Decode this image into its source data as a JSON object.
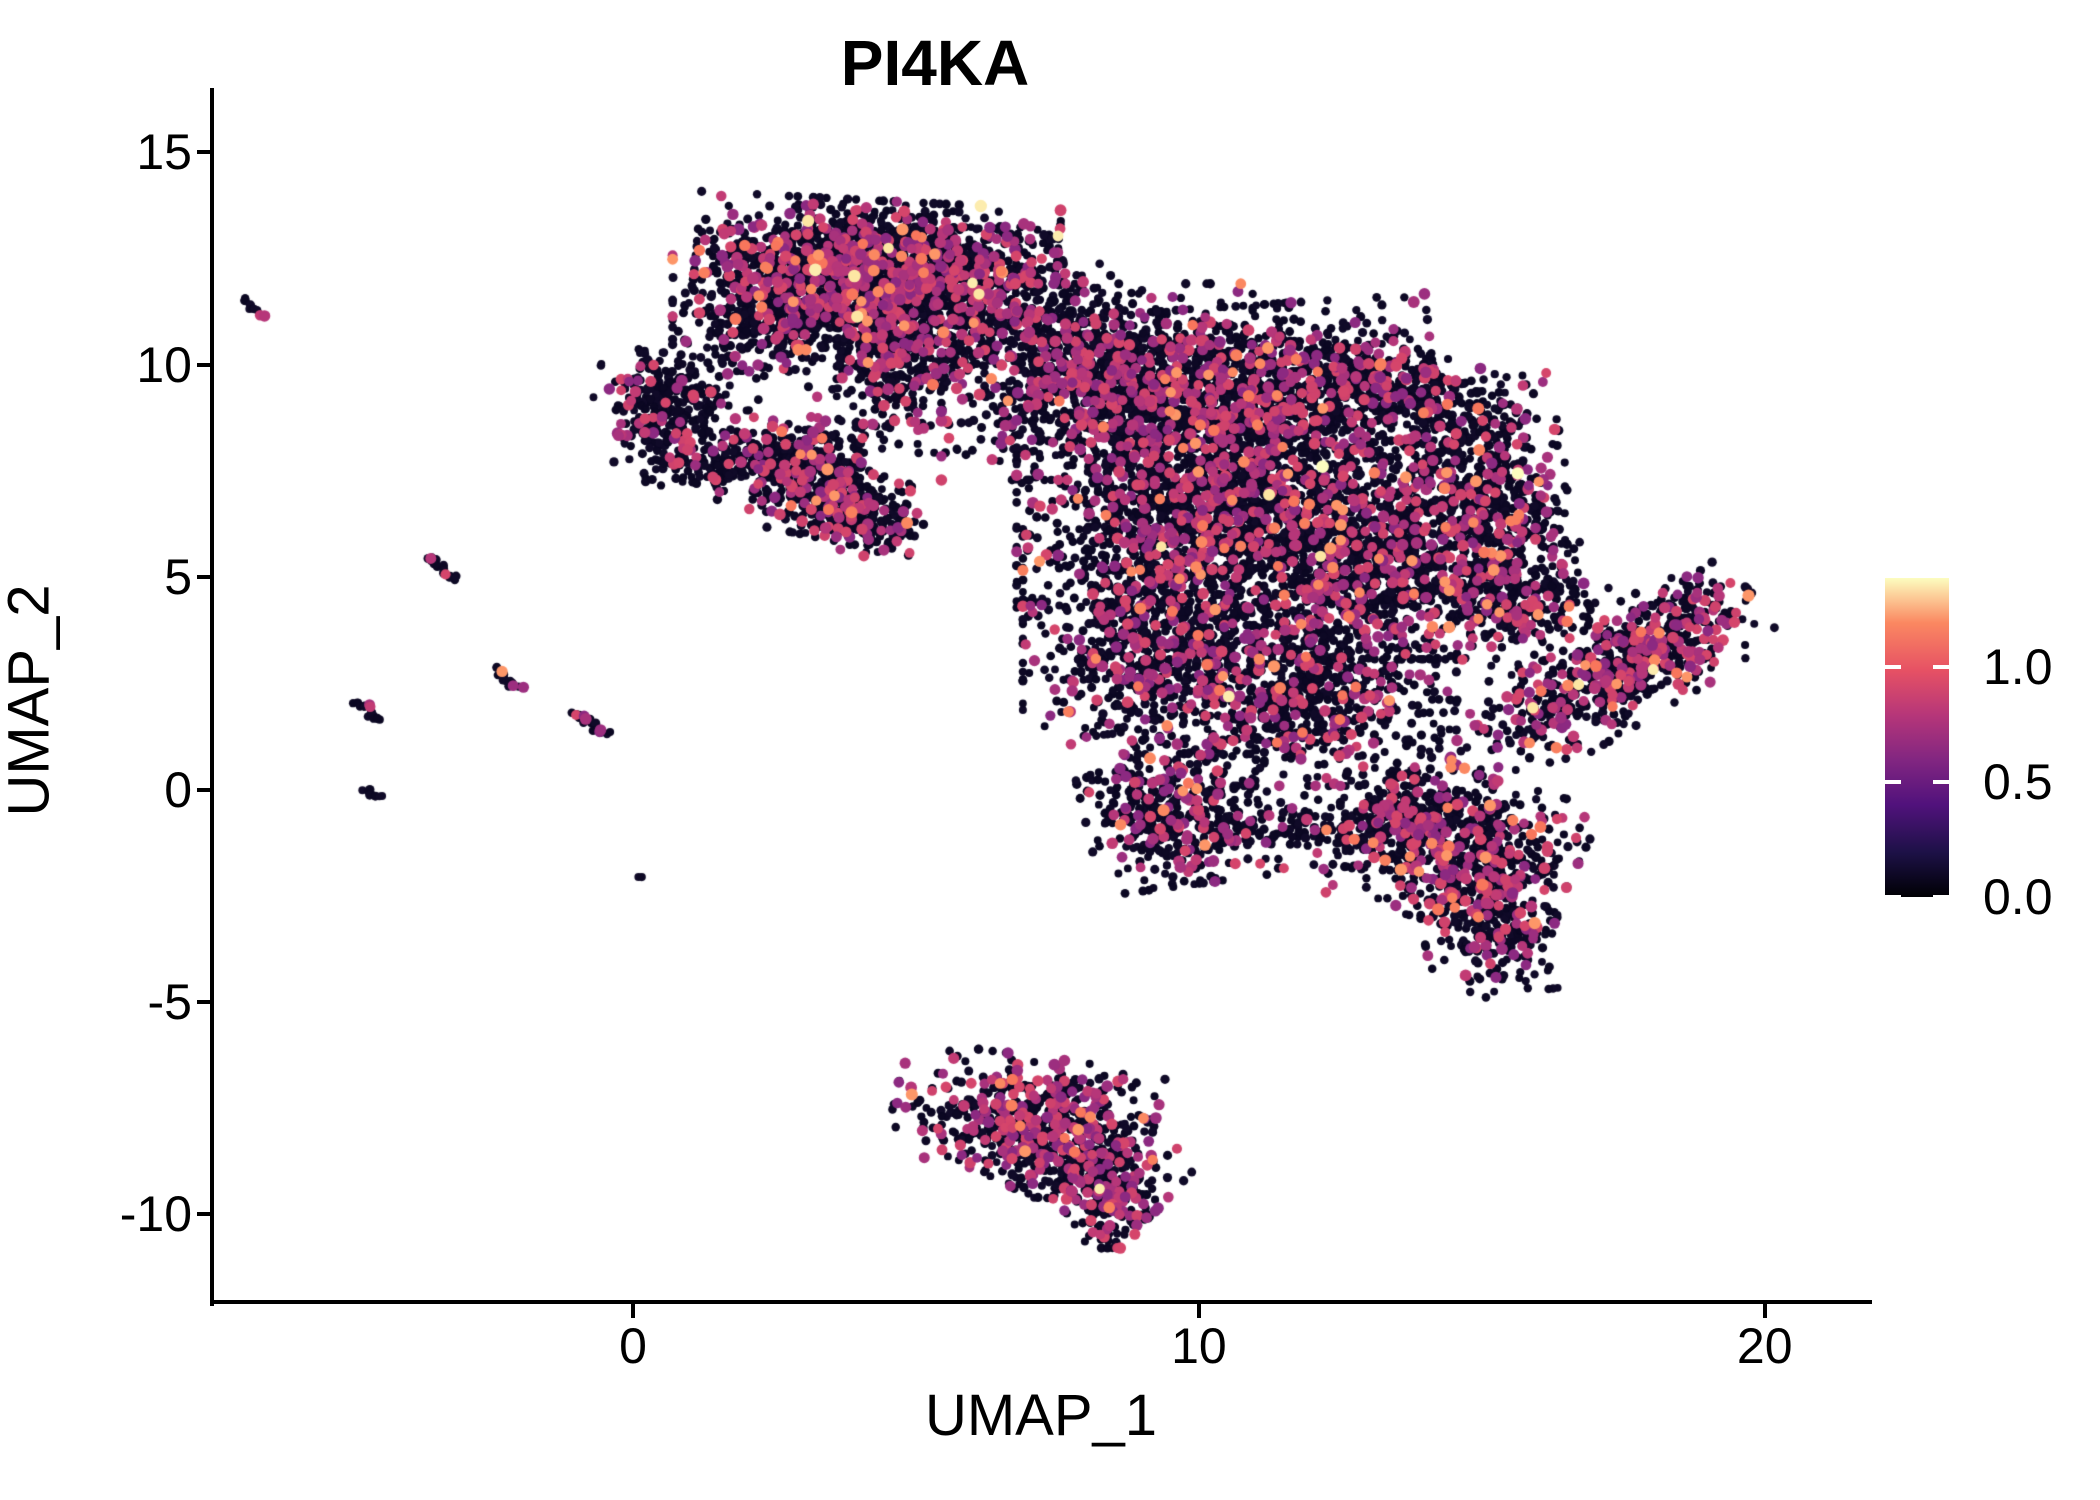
{
  "title": {
    "text": "PI4KA"
  },
  "axes": {
    "x": {
      "label": "UMAP_1",
      "range": [
        -7.44,
        21.86
      ],
      "ticks": [
        {
          "value": 0,
          "label": "0"
        },
        {
          "value": 10,
          "label": "10"
        },
        {
          "value": 20,
          "label": "20"
        }
      ]
    },
    "y": {
      "label": "UMAP_2",
      "range": [
        -12.06,
        16.47
      ],
      "ticks": [
        {
          "value": 15,
          "label": "15"
        },
        {
          "value": 10,
          "label": "10"
        },
        {
          "value": 5,
          "label": "5"
        },
        {
          "value": 0,
          "label": "0"
        },
        {
          "value": -5,
          "label": "-5"
        },
        {
          "value": -10,
          "label": "-10"
        }
      ]
    }
  },
  "legend": {
    "max_value": 1.387,
    "ticks": [
      {
        "value": 1.0,
        "label": "1.0"
      },
      {
        "value": 0.5,
        "label": "0.5"
      },
      {
        "value": 0.0,
        "label": "0.0"
      }
    ],
    "gradient": [
      {
        "t": 0.0,
        "color": "#000004"
      },
      {
        "t": 0.14,
        "color": "#1d1147"
      },
      {
        "t": 0.29,
        "color": "#51127c"
      },
      {
        "t": 0.43,
        "color": "#822681"
      },
      {
        "t": 0.57,
        "color": "#b63679"
      },
      {
        "t": 0.71,
        "color": "#e65164"
      },
      {
        "t": 0.86,
        "color": "#fb8861"
      },
      {
        "t": 1.0,
        "color": "#fcfdbf"
      }
    ]
  },
  "chart_data": {
    "type": "scatter",
    "title": "PI4KA",
    "xlabel": "UMAP_1",
    "ylabel": "UMAP_2",
    "xlim": [
      -7.44,
      21.86
    ],
    "ylim": [
      -12.06,
      16.47
    ],
    "grid": false,
    "legend_position": "right",
    "colorbar": {
      "colormap": "magma",
      "domain": [
        0.0,
        1.387
      ],
      "tick_values": [
        0.0,
        0.5,
        1.0
      ]
    },
    "palette": {
      "zero": [
        "#0b0722",
        "#0d0824",
        "#100a28"
      ],
      "mid": [
        "#8c2981",
        "#9c2e7f",
        "#a8327c",
        "#b63679",
        "#c23b74",
        "#cf426c",
        "#d5456b"
      ],
      "high": [
        "#f8765c",
        "#fb8861",
        "#fd9668",
        "#f97f5e"
      ],
      "top": [
        "#fcecae",
        "#fcfdbf",
        "#fde6a3"
      ]
    },
    "point_radius": {
      "zero": 4.3,
      "mid": 5.4,
      "high": 5.6,
      "top": 5.8
    },
    "clusters": [
      {
        "name": "top-center-a1",
        "shape": "blob",
        "cx": 4.3,
        "cy": 12.5,
        "sx": 1.45,
        "sy": 0.62,
        "rot": -4,
        "n": 1050,
        "mix": {
          "zero": 0.76,
          "mid": 0.22,
          "high": 0.018,
          "top": 0.002
        }
      },
      {
        "name": "top-center-a2",
        "shape": "blob",
        "cx": 2.9,
        "cy": 11.5,
        "sx": 1.0,
        "sy": 0.75,
        "rot": 0,
        "n": 650,
        "mix": {
          "zero": 0.76,
          "mid": 0.22,
          "high": 0.018,
          "top": 0.002
        }
      },
      {
        "name": "top-center-a3",
        "shape": "blob",
        "cx": 5.2,
        "cy": 11.3,
        "sx": 1.15,
        "sy": 0.8,
        "rot": 8,
        "n": 600,
        "mix": {
          "zero": 0.76,
          "mid": 0.22,
          "high": 0.018,
          "top": 0.002
        }
      },
      {
        "name": "top-center-tail",
        "shape": "blob",
        "cx": 4.7,
        "cy": 9.8,
        "sx": 0.5,
        "sy": 0.85,
        "rot": 0,
        "n": 260,
        "mix": {
          "zero": 0.82,
          "mid": 0.17,
          "high": 0.01,
          "top": 0.0
        }
      },
      {
        "name": "top-center-chain",
        "shape": "blob",
        "cx": 1.9,
        "cy": 10.5,
        "sx": 0.5,
        "sy": 0.6,
        "rot": 0,
        "n": 60,
        "mix": {
          "zero": 0.9,
          "mid": 0.1,
          "high": 0.0,
          "top": 0.0
        }
      },
      {
        "name": "bridge-a-to-c",
        "shape": "blob",
        "cx": 7.2,
        "cy": 11.2,
        "sx": 0.8,
        "sy": 0.75,
        "rot": -35,
        "n": 130,
        "mix": {
          "zero": 0.87,
          "mid": 0.13,
          "high": 0.0,
          "top": 0.0
        }
      },
      {
        "name": "left-small-b1-upper",
        "shape": "blob",
        "cx": 0.55,
        "cy": 9.35,
        "sx": 0.55,
        "sy": 0.42,
        "rot": -10,
        "n": 170,
        "mix": {
          "zero": 0.88,
          "mid": 0.11,
          "high": 0.01,
          "top": 0.0
        }
      },
      {
        "name": "left-small-b1-lower",
        "shape": "blob",
        "cx": 0.6,
        "cy": 8.35,
        "sx": 0.45,
        "sy": 0.5,
        "rot": 0,
        "n": 150,
        "mix": {
          "zero": 0.88,
          "mid": 0.11,
          "high": 0.01,
          "top": 0.0
        }
      },
      {
        "name": "left-small-b1-hook",
        "shape": "blob",
        "cx": 1.5,
        "cy": 7.65,
        "sx": 0.55,
        "sy": 0.28,
        "rot": 20,
        "n": 100,
        "mix": {
          "zero": 0.9,
          "mid": 0.1,
          "high": 0.0,
          "top": 0.0
        }
      },
      {
        "name": "mid-small-b2-upper",
        "shape": "blob",
        "cx": 2.9,
        "cy": 7.7,
        "sx": 0.62,
        "sy": 0.5,
        "rot": -10,
        "n": 300,
        "mix": {
          "zero": 0.8,
          "mid": 0.185,
          "high": 0.015,
          "top": 0.0
        }
      },
      {
        "name": "mid-small-b2-mid",
        "shape": "blob",
        "cx": 3.5,
        "cy": 6.9,
        "sx": 0.6,
        "sy": 0.45,
        "rot": -15,
        "n": 250,
        "mix": {
          "zero": 0.8,
          "mid": 0.185,
          "high": 0.015,
          "top": 0.0
        }
      },
      {
        "name": "mid-small-b2-tail",
        "shape": "blob",
        "cx": 4.0,
        "cy": 6.35,
        "sx": 0.5,
        "sy": 0.35,
        "rot": -20,
        "n": 150,
        "mix": {
          "zero": 0.82,
          "mid": 0.17,
          "high": 0.01,
          "top": 0.0
        }
      },
      {
        "name": "main-c1-topleft",
        "shape": "blob",
        "cx": 8.2,
        "cy": 9.6,
        "sx": 1.25,
        "sy": 1.05,
        "rot": 0,
        "n": 1050,
        "mix": {
          "zero": 0.8,
          "mid": 0.185,
          "high": 0.014,
          "top": 0.001
        }
      },
      {
        "name": "main-c2-top",
        "shape": "blob",
        "cx": 11.0,
        "cy": 9.2,
        "sx": 1.45,
        "sy": 1.0,
        "rot": 5,
        "n": 1250,
        "mix": {
          "zero": 0.8,
          "mid": 0.185,
          "high": 0.014,
          "top": 0.001
        }
      },
      {
        "name": "main-c3-arc-arm",
        "shape": "blob",
        "cx": 13.6,
        "cy": 9.4,
        "sx": 1.0,
        "sy": 0.5,
        "rot": -28,
        "n": 330,
        "mix": {
          "zero": 0.82,
          "mid": 0.17,
          "high": 0.01,
          "top": 0.0
        }
      },
      {
        "name": "main-c3-right-edge",
        "shape": "blob",
        "cx": 15.2,
        "cy": 6.9,
        "sx": 0.62,
        "sy": 1.25,
        "rot": 8,
        "n": 480,
        "mix": {
          "zero": 0.78,
          "mid": 0.2,
          "high": 0.019,
          "top": 0.001
        }
      },
      {
        "name": "main-c4-center",
        "shape": "blob",
        "cx": 10.3,
        "cy": 6.6,
        "sx": 1.6,
        "sy": 1.05,
        "rot": 0,
        "n": 1400,
        "mix": {
          "zero": 0.8,
          "mid": 0.185,
          "high": 0.014,
          "top": 0.001
        }
      },
      {
        "name": "main-c5-centerright",
        "shape": "blob",
        "cx": 13.2,
        "cy": 5.6,
        "sx": 1.25,
        "sy": 1.15,
        "rot": 0,
        "n": 1050,
        "mix": {
          "zero": 0.79,
          "mid": 0.195,
          "high": 0.014,
          "top": 0.001
        }
      },
      {
        "name": "main-c6-lowerleft",
        "shape": "blob",
        "cx": 9.2,
        "cy": 3.6,
        "sx": 1.05,
        "sy": 1.15,
        "rot": 0,
        "n": 800,
        "mix": {
          "zero": 0.81,
          "mid": 0.175,
          "high": 0.014,
          "top": 0.001
        }
      },
      {
        "name": "main-c7-lowermid",
        "shape": "blob",
        "cx": 11.8,
        "cy": 2.4,
        "sx": 1.25,
        "sy": 1.05,
        "rot": 0,
        "n": 850,
        "mix": {
          "zero": 0.8,
          "mid": 0.185,
          "high": 0.014,
          "top": 0.001
        }
      },
      {
        "name": "main-c8-spur",
        "shape": "blob",
        "cx": 15.6,
        "cy": 4.4,
        "sx": 0.7,
        "sy": 0.55,
        "rot": 35,
        "n": 260,
        "mix": {
          "zero": 0.78,
          "mid": 0.2,
          "high": 0.02,
          "top": 0.0
        }
      },
      {
        "name": "main-c9-knob",
        "shape": "blob",
        "cx": 9.5,
        "cy": -0.4,
        "sx": 0.7,
        "sy": 0.85,
        "rot": 10,
        "n": 430,
        "mix": {
          "zero": 0.78,
          "mid": 0.2,
          "high": 0.02,
          "top": 0.0
        }
      },
      {
        "name": "main-c10-chain",
        "shape": "blob",
        "cx": 11.7,
        "cy": -1.0,
        "sx": 1.15,
        "sy": 0.4,
        "rot": -8,
        "n": 170,
        "mix": {
          "zero": 0.86,
          "mid": 0.13,
          "high": 0.01,
          "top": 0.0
        }
      },
      {
        "name": "main-c11-lowerlobe",
        "shape": "blob",
        "cx": 14.6,
        "cy": -1.4,
        "sx": 0.95,
        "sy": 0.8,
        "rot": -20,
        "n": 600,
        "mix": {
          "zero": 0.76,
          "mid": 0.22,
          "high": 0.019,
          "top": 0.001
        }
      },
      {
        "name": "main-c11-tail",
        "shape": "blob",
        "cx": 15.15,
        "cy": -3.2,
        "sx": 0.55,
        "sy": 0.75,
        "rot": 10,
        "n": 260,
        "mix": {
          "zero": 0.78,
          "mid": 0.2,
          "high": 0.02,
          "top": 0.0
        }
      },
      {
        "name": "main-c11-leftnub",
        "shape": "blob",
        "cx": 13.6,
        "cy": -0.5,
        "sx": 0.5,
        "sy": 0.5,
        "rot": 0,
        "n": 170,
        "mix": {
          "zero": 0.8,
          "mid": 0.19,
          "high": 0.01,
          "top": 0.0
        }
      },
      {
        "name": "right-wing-d1",
        "shape": "blob",
        "cx": 16.9,
        "cy": 2.4,
        "sx": 1.35,
        "sy": 0.55,
        "rot": 38,
        "n": 430,
        "mix": {
          "zero": 0.68,
          "mid": 0.29,
          "high": 0.028,
          "top": 0.002
        }
      },
      {
        "name": "right-wing-d2",
        "shape": "blob",
        "cx": 18.2,
        "cy": 3.6,
        "sx": 0.85,
        "sy": 0.5,
        "rot": 38,
        "n": 280,
        "mix": {
          "zero": 0.68,
          "mid": 0.29,
          "high": 0.028,
          "top": 0.002
        }
      },
      {
        "name": "bottom-e1",
        "shape": "blob",
        "cx": 6.9,
        "cy": -7.7,
        "sx": 1.05,
        "sy": 0.65,
        "rot": -10,
        "n": 480,
        "mix": {
          "zero": 0.72,
          "mid": 0.26,
          "high": 0.018,
          "top": 0.002
        }
      },
      {
        "name": "bottom-e2",
        "shape": "blob",
        "cx": 8.0,
        "cy": -8.8,
        "sx": 0.75,
        "sy": 0.55,
        "rot": -35,
        "n": 300,
        "mix": {
          "zero": 0.72,
          "mid": 0.26,
          "high": 0.018,
          "top": 0.002
        }
      },
      {
        "name": "bottom-e3-tail",
        "shape": "blob",
        "cx": 8.35,
        "cy": -9.8,
        "sx": 0.33,
        "sy": 0.45,
        "rot": 0,
        "n": 110,
        "mix": {
          "zero": 0.7,
          "mid": 0.28,
          "high": 0.02,
          "top": 0.0
        }
      },
      {
        "name": "streak-topleft",
        "shape": "streak",
        "x1": -6.85,
        "y1": 11.55,
        "x2": -6.55,
        "y2": 11.15,
        "jitter": 0.04,
        "n": 11,
        "mix": {
          "zero": 0.8,
          "mid": 0.2,
          "high": 0.0,
          "top": 0.0
        }
      },
      {
        "name": "streak-minus3-5",
        "shape": "streak",
        "x1": -3.6,
        "y1": 5.45,
        "x2": -3.15,
        "y2": 4.95,
        "jitter": 0.05,
        "n": 22,
        "mix": {
          "zero": 0.87,
          "mid": 0.13,
          "high": 0.0,
          "top": 0.0
        }
      },
      {
        "name": "streak-minus47-19",
        "shape": "streak",
        "x1": -4.9,
        "y1": 2.1,
        "x2": -4.5,
        "y2": 1.68,
        "jitter": 0.05,
        "n": 16,
        "mix": {
          "zero": 0.85,
          "mid": 0.05,
          "high": 0.1,
          "top": 0.0
        }
      },
      {
        "name": "streak-minus22-26",
        "shape": "streak",
        "x1": -2.42,
        "y1": 2.82,
        "x2": -2.02,
        "y2": 2.38,
        "jitter": 0.05,
        "n": 16,
        "mix": {
          "zero": 0.75,
          "mid": 0.15,
          "high": 0.1,
          "top": 0.0
        }
      },
      {
        "name": "streak-minus07-16",
        "shape": "streak",
        "x1": -1.05,
        "y1": 1.85,
        "x2": -0.45,
        "y2": 1.32,
        "jitter": 0.05,
        "n": 20,
        "mix": {
          "zero": 0.8,
          "mid": 0.2,
          "high": 0.0,
          "top": 0.0
        }
      },
      {
        "name": "streak-minus45-0",
        "shape": "streak",
        "x1": -4.72,
        "y1": 0.06,
        "x2": -4.42,
        "y2": -0.18,
        "jitter": 0.04,
        "n": 9,
        "mix": {
          "zero": 1.0,
          "mid": 0.0,
          "high": 0.0,
          "top": 0.0
        }
      },
      {
        "name": "lone-dot",
        "shape": "streak",
        "x1": 0.1,
        "y1": -2.05,
        "x2": 0.14,
        "y2": -2.05,
        "jitter": 0.01,
        "n": 2,
        "mix": {
          "zero": 1.0,
          "mid": 0.0,
          "high": 0.0,
          "top": 0.0
        }
      }
    ]
  }
}
